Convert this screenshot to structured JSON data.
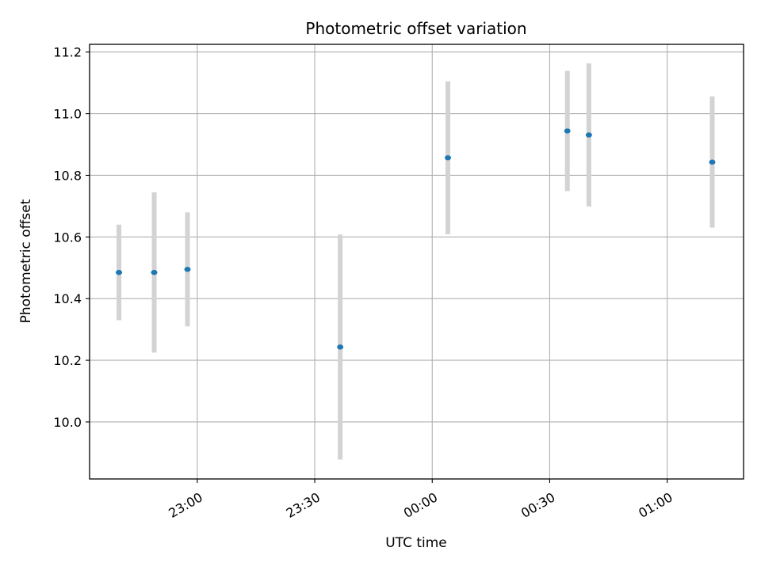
{
  "chart_data": {
    "type": "scatter",
    "title": "Photometric offset variation",
    "xlabel": "UTC time",
    "ylabel": "Photometric offset",
    "x_tick_labels": [
      "23:00",
      "23:30",
      "00:00",
      "00:30",
      "01:00"
    ],
    "x_ticks_minutes": [
      -60,
      -30,
      0,
      30,
      60
    ],
    "y_ticks": [
      10.0,
      10.2,
      10.4,
      10.6,
      10.8,
      11.0,
      11.2
    ],
    "y_tick_labels": [
      "10.0",
      "10.2",
      "10.4",
      "10.6",
      "10.8",
      "11.0",
      "11.2"
    ],
    "xlim_minutes": [
      -87.5,
      79.5
    ],
    "ylim": [
      9.815,
      11.225
    ],
    "grid": true,
    "colors": {
      "point": "#1f77b4",
      "errorbar": "#d3d3d3",
      "grid": "#b0b0b0"
    },
    "points": [
      {
        "t": -80,
        "y": 10.485,
        "err": 0.155
      },
      {
        "t": -71,
        "y": 10.485,
        "err": 0.26
      },
      {
        "t": -62.5,
        "y": 10.495,
        "err": 0.185
      },
      {
        "t": -23.5,
        "y": 10.243,
        "err": 0.365
      },
      {
        "t": 4,
        "y": 10.857,
        "err": 0.248
      },
      {
        "t": 34.5,
        "y": 10.944,
        "err": 0.195
      },
      {
        "t": 40,
        "y": 10.931,
        "err": 0.232
      },
      {
        "t": 71.5,
        "y": 10.843,
        "err": 0.213
      }
    ]
  }
}
